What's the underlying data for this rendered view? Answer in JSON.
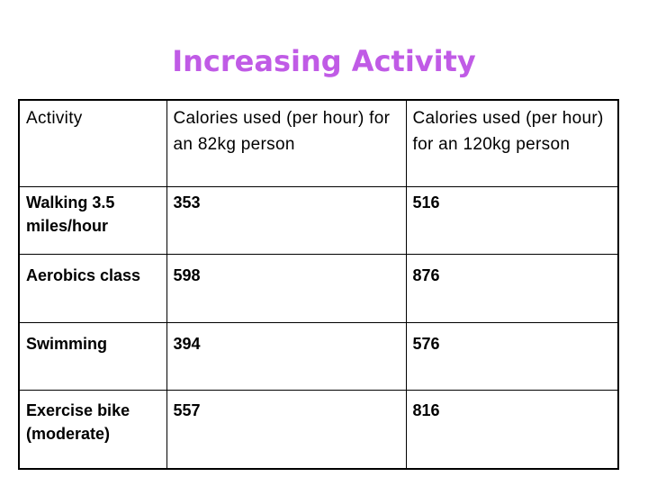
{
  "slide": {
    "title": "Increasing Activity",
    "title_color": "#c05be6"
  },
  "table": {
    "headers": [
      "Activity",
      "Calories used (per hour) for an 82kg person",
      "Calories used (per hour)  for an 120kg person"
    ],
    "rows": [
      [
        "Walking 3.5 miles/hour",
        "353",
        "516"
      ],
      [
        "Aerobics class",
        "598",
        "876"
      ],
      [
        "Swimming",
        "394",
        "576"
      ],
      [
        "Exercise bike (moderate)",
        "557",
        "816"
      ]
    ]
  }
}
